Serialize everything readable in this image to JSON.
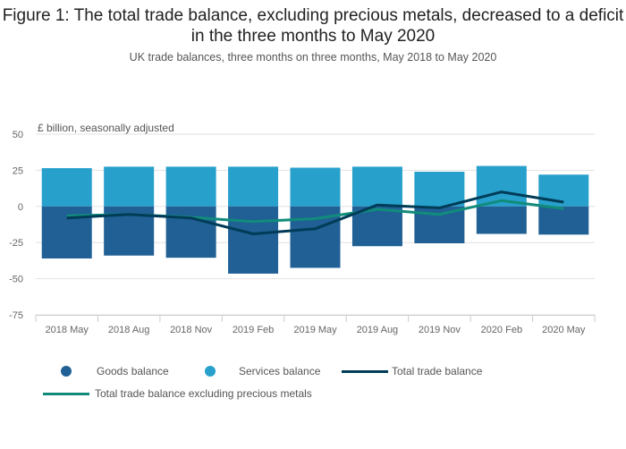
{
  "title": "Figure 1: The total trade balance, excluding precious metals, decreased to a deficit in the three months to May 2020",
  "subtitle": "UK trade balances, three months on three months, May 2018 to May 2020",
  "unit_label": "£ billion, seasonally adjusted",
  "colors": {
    "goods": "#206095",
    "services": "#27a0cc",
    "total": "#003c57",
    "total_excl": "#118c7b"
  },
  "legend": {
    "goods": "Goods balance",
    "services": "Services balance",
    "total": "Total trade balance",
    "total_excl": "Total trade balance excluding precious metals"
  },
  "chart_data": {
    "type": "bar",
    "stacked": true,
    "categories": [
      "2018 May",
      "2018 Aug",
      "2018 Nov",
      "2019 Feb",
      "2019 May",
      "2019 Aug",
      "2019 Nov",
      "2020 Feb",
      "2020 May"
    ],
    "ylim": [
      -75,
      50
    ],
    "yticks": [
      50,
      25,
      0,
      -25,
      -50,
      -75
    ],
    "series": [
      {
        "name": "Goods balance",
        "type": "bar",
        "values": [
          -36,
          -34,
          -35.5,
          -46.5,
          -42.5,
          -27.5,
          -25.5,
          -19,
          -19.5
        ]
      },
      {
        "name": "Services balance",
        "type": "bar",
        "values": [
          26.5,
          27.5,
          27.5,
          27.5,
          26.8,
          27.5,
          24,
          28,
          22
        ]
      },
      {
        "name": "Total trade balance",
        "type": "line",
        "values": [
          -8,
          -5.5,
          -8,
          -19,
          -15.5,
          1,
          -1,
          10,
          3
        ]
      },
      {
        "name": "Total trade balance excluding precious metals",
        "type": "line",
        "values": [
          -6.5,
          -5.5,
          -7.5,
          -10.5,
          -8.5,
          -2,
          -5.5,
          4,
          -1.5
        ]
      }
    ],
    "grid": true,
    "legend_position": "bottom"
  }
}
